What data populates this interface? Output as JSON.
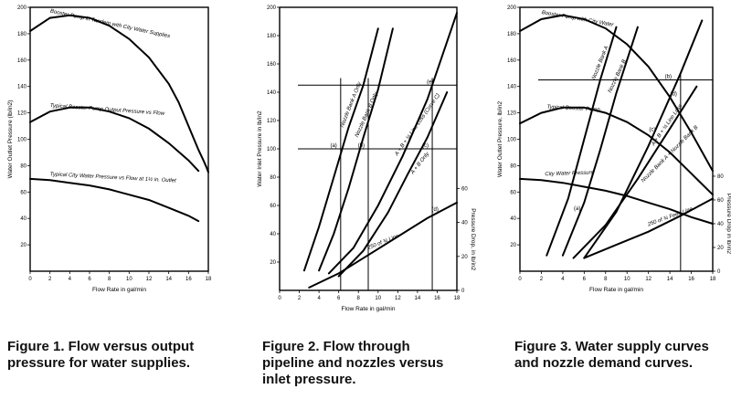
{
  "captions": [
    {
      "lines": [
        "Figure 1. Flow versus output",
        "pressure for water supplies."
      ]
    },
    {
      "lines": [
        "Figure 2. Flow through",
        "pipeline and nozzles versus",
        "inlet pressure."
      ]
    },
    {
      "lines": [
        "Figure 3. Water supply curves",
        "and nozzle demand curves."
      ]
    }
  ],
  "chart_data": [
    {
      "type": "line",
      "xlabel": "Flow Rate in gal/min",
      "ylabel": "Water Outlet Pressure (lb/in2)",
      "xlim": [
        0,
        18
      ],
      "ylim": [
        0,
        200
      ],
      "xticks": [
        0,
        2,
        4,
        6,
        8,
        10,
        12,
        14,
        16,
        18
      ],
      "yticks": [
        20,
        40,
        60,
        80,
        100,
        120,
        140,
        160,
        180,
        200
      ],
      "series": [
        {
          "name": "Booster Pump in Tandem with City Water Supplies",
          "x": [
            0,
            2,
            4,
            6,
            8,
            10,
            12,
            14,
            15,
            16,
            17,
            17.5,
            17.8,
            18
          ],
          "y": [
            182,
            192,
            194,
            192,
            186,
            176,
            162,
            142,
            128,
            110,
            92,
            84,
            79,
            75
          ]
        },
        {
          "name": "Typical Booster Pump Output Pressure vs Flow",
          "x": [
            0,
            2,
            4,
            6,
            8,
            10,
            12,
            14,
            16,
            17
          ],
          "y": [
            113,
            121,
            124,
            124,
            121,
            116,
            108,
            97,
            84,
            76
          ]
        },
        {
          "name": "Typical City Water Pressure vs Flow at 1½ in. Outlet",
          "x": [
            0,
            2,
            4,
            6,
            8,
            10,
            12,
            14,
            16,
            17
          ],
          "y": [
            70,
            69,
            67,
            65,
            62,
            58,
            54,
            48,
            42,
            38
          ]
        }
      ]
    },
    {
      "type": "line",
      "xlabel": "Flow Rate in gal/min",
      "ylabel": "Water Inlet Pressure in lb/in2",
      "y2label": "Pressure Drop, in lb/in2",
      "xlim": [
        0,
        18
      ],
      "ylim": [
        0,
        200
      ],
      "xticks": [
        0,
        2,
        4,
        6,
        8,
        10,
        12,
        14,
        16,
        18
      ],
      "yticks": [
        20,
        40,
        60,
        80,
        100,
        120,
        140,
        160,
        180,
        200
      ],
      "y2ticks": [
        0,
        20,
        40,
        60
      ],
      "markers": [
        "(a)",
        "(b)",
        "(c)",
        "(d)",
        "(e)"
      ],
      "series": [
        {
          "name": "Nozzle Bank A Only",
          "x": [
            2.5,
            4,
            5.5,
            7,
            8.5,
            10
          ],
          "y": [
            14,
            45,
            80,
            115,
            145,
            185
          ]
        },
        {
          "name": "Nozzle Bank B Only",
          "x": [
            4,
            5.5,
            7,
            8.5,
            10,
            11.5
          ],
          "y": [
            14,
            40,
            72,
            108,
            142,
            185
          ]
        },
        {
          "name": "A + B + ¼ Line Loss (Curve C)",
          "x": [
            5,
            7.5,
            10,
            12.5,
            15,
            18
          ],
          "y": [
            12,
            30,
            60,
            95,
            135,
            196
          ]
        },
        {
          "name": "A + B Only",
          "x": [
            6,
            8.5,
            11,
            13,
            15,
            17
          ],
          "y": [
            10,
            28,
            55,
            82,
            108,
            140
          ]
        },
        {
          "name": "250 of ¾ Line",
          "x": [
            3,
            6,
            9,
            12,
            15,
            18
          ],
          "y": [
            2,
            12,
            25,
            38,
            51,
            62
          ]
        }
      ]
    },
    {
      "type": "line",
      "xlabel": "Flow Rate in gal/min",
      "ylabel": "Water Outlet Pressure, lb/in2",
      "y2label": "Pressure Drop in lb/in2",
      "xlim": [
        0,
        18
      ],
      "ylim": [
        0,
        200
      ],
      "xticks": [
        0,
        2,
        4,
        6,
        8,
        10,
        12,
        14,
        16,
        18
      ],
      "yticks": [
        20,
        40,
        60,
        80,
        100,
        120,
        140,
        160,
        180,
        200
      ],
      "y2ticks": [
        0,
        20,
        40,
        60,
        80
      ],
      "markers": [
        "(a)",
        "(b)",
        "(c)",
        "(d)"
      ],
      "series": [
        {
          "name": "Booster Pump with City Water",
          "x": [
            0,
            2,
            4,
            6,
            8,
            10,
            12,
            14,
            16,
            18
          ],
          "y": [
            182,
            191,
            194,
            191,
            184,
            172,
            155,
            132,
            105,
            76
          ]
        },
        {
          "name": "Typical Booster Pump",
          "x": [
            0,
            2,
            4,
            6,
            8,
            10,
            12,
            14,
            16,
            18
          ],
          "y": [
            112,
            120,
            124,
            124,
            120,
            113,
            103,
            90,
            74,
            58
          ]
        },
        {
          "name": "City Water Pressure",
          "x": [
            0,
            2,
            4,
            6,
            8,
            10,
            12,
            14,
            16,
            18
          ],
          "y": [
            70,
            69,
            67,
            64,
            61,
            57,
            52,
            47,
            41,
            36
          ]
        },
        {
          "name": "Nozzle Bank A",
          "x": [
            2.5,
            4.5,
            6,
            7.5,
            9
          ],
          "y": [
            12,
            55,
            100,
            145,
            185
          ]
        },
        {
          "name": "Nozzle Bank B",
          "x": [
            4,
            6,
            7.5,
            9,
            11
          ],
          "y": [
            12,
            52,
            92,
            135,
            185
          ]
        },
        {
          "name": "A + B + ¼ Line Loss",
          "x": [
            6,
            9,
            12,
            15,
            17
          ],
          "y": [
            10,
            45,
            95,
            150,
            190
          ]
        },
        {
          "name": "Nozzle Bank A + Nozzle Bank B",
          "x": [
            5,
            8,
            11,
            14,
            16.5
          ],
          "y": [
            10,
            35,
            70,
            108,
            140
          ]
        },
        {
          "name": "250 of ¾ Feed Line",
          "x": [
            6,
            9,
            12,
            15,
            18
          ],
          "y": [
            10,
            20,
            30,
            42,
            55
          ]
        }
      ]
    }
  ]
}
